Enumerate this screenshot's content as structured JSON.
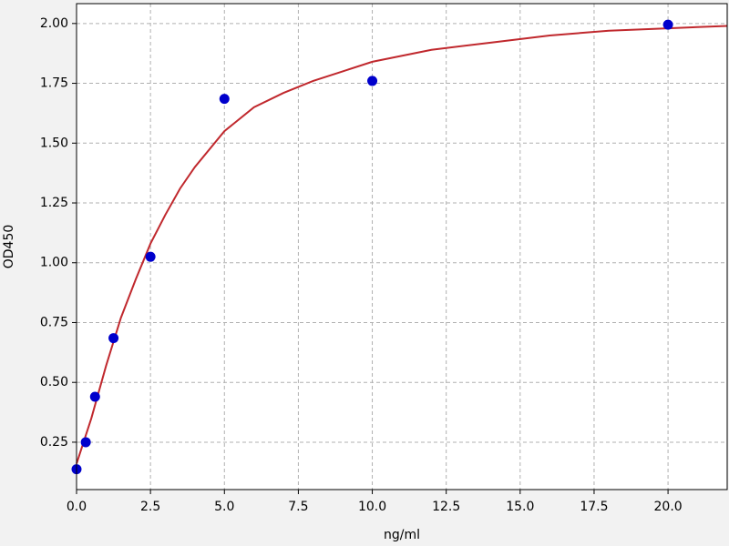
{
  "chart_data": {
    "type": "scatter",
    "xlabel": "ng/ml",
    "ylabel": "OD450",
    "xlim": [
      0,
      22
    ],
    "ylim": [
      0.052,
      2.083
    ],
    "xticks": [
      {
        "value": 0,
        "label": "0.0"
      },
      {
        "value": 2.5,
        "label": "2.5"
      },
      {
        "value": 5,
        "label": "5.0"
      },
      {
        "value": 7.5,
        "label": "7.5"
      },
      {
        "value": 10,
        "label": "10.0"
      },
      {
        "value": 12.5,
        "label": "12.5"
      },
      {
        "value": 15,
        "label": "15.0"
      },
      {
        "value": 17.5,
        "label": "17.5"
      },
      {
        "value": 20,
        "label": "20.0"
      }
    ],
    "yticks": [
      {
        "value": 0.25,
        "label": "0.25"
      },
      {
        "value": 0.5,
        "label": "0.50"
      },
      {
        "value": 0.75,
        "label": "0.75"
      },
      {
        "value": 1,
        "label": "1.00"
      },
      {
        "value": 1.25,
        "label": "1.25"
      },
      {
        "value": 1.5,
        "label": "1.50"
      },
      {
        "value": 1.75,
        "label": "1.75"
      },
      {
        "value": 2,
        "label": "2.00"
      }
    ],
    "grid": true,
    "series": [
      {
        "kind": "scatter",
        "color": "#0000cc",
        "x": [
          0,
          0.3125,
          0.625,
          1.25,
          2.5,
          5,
          10,
          20
        ],
        "values": [
          0.137,
          0.25,
          0.44,
          0.685,
          1.025,
          1.685,
          1.76,
          1.995
        ]
      },
      {
        "kind": "line",
        "color": "#c0282d",
        "x": [
          0,
          0.5,
          1,
          1.5,
          2,
          2.5,
          3,
          3.5,
          4,
          5,
          6,
          7,
          8,
          9,
          10,
          12,
          14,
          16,
          18,
          20,
          22
        ],
        "values": [
          0.16,
          0.35,
          0.57,
          0.77,
          0.93,
          1.08,
          1.2,
          1.31,
          1.4,
          1.55,
          1.65,
          1.71,
          1.76,
          1.8,
          1.84,
          1.89,
          1.92,
          1.95,
          1.97,
          1.98,
          1.99
        ]
      }
    ]
  }
}
